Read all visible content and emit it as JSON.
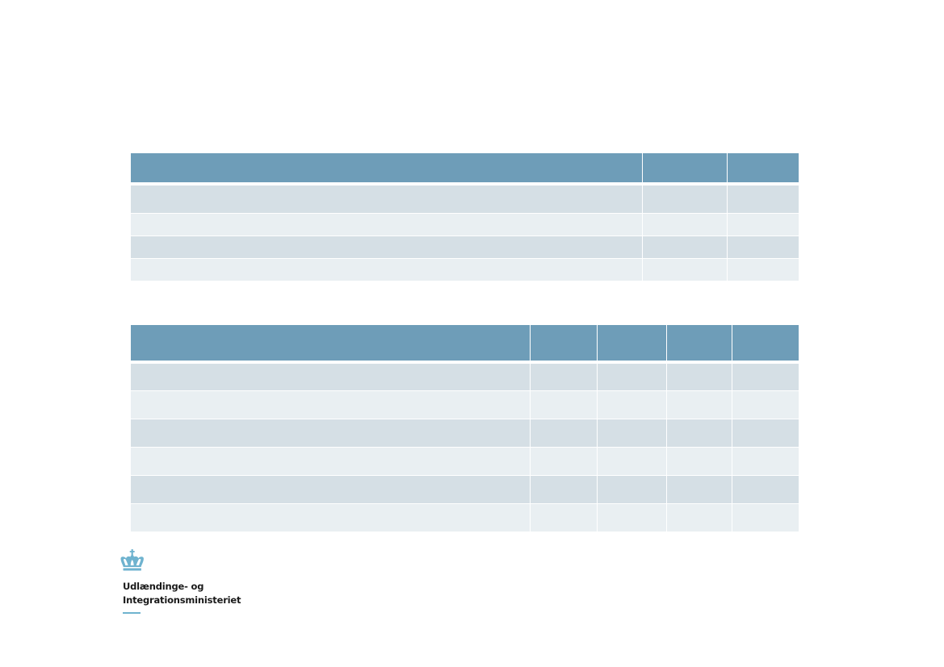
{
  "logo": {
    "name_line1": "Udlændinge- og",
    "name_line2": "Integrationsministeriet",
    "icon": "crown-icon",
    "accent_color": "#6fb3cf"
  },
  "colors": {
    "header": "#6e9db8",
    "row_dark": "#d5dfe5",
    "row_light": "#e9eff2"
  },
  "table1": {
    "columns": 3,
    "rows": 4
  },
  "table2": {
    "columns": 5,
    "rows": 6
  }
}
